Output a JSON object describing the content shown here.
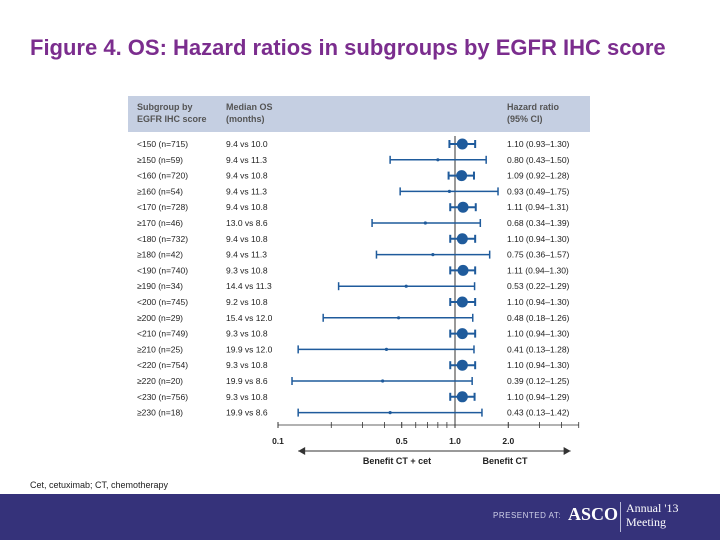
{
  "title": "Figure 4. OS: Hazard ratios in subgroups by EGFR IHC score",
  "footnote": "Cet, cetuximab; CT, chemotherapy",
  "footer": {
    "presented": "PRESENTED AT:",
    "logo": "ASCO",
    "annual": "Annual '13 Meeting"
  },
  "table_header": {
    "col1": [
      "Subgroup by",
      "EGFR IHC score"
    ],
    "col2": [
      "Median OS",
      "(months)"
    ],
    "col3": [
      "Hazard ratio",
      "(95% CI)"
    ]
  },
  "colors": {
    "header_bg": "#c5cfe2",
    "marker": "#1f5b9c",
    "title": "#7b2d8e",
    "footer": "#35327a"
  },
  "chart_data": {
    "type": "forest",
    "x_scale": "log",
    "reference_line": 1.0,
    "x_ticks": [
      {
        "value": 0.1,
        "label": "0.1"
      },
      {
        "value": 0.5,
        "label": "0.5"
      },
      {
        "value": 1.0,
        "label": "1.0"
      },
      {
        "value": 2.0,
        "label": "2.0"
      }
    ],
    "x_minor_ticks": [
      0.2,
      0.3,
      0.4,
      0.6,
      0.7,
      0.8,
      0.9,
      3,
      4,
      5
    ],
    "xlabel_left": "Benefit CT + cet",
    "xlabel_right": "Benefit CT",
    "rows": [
      {
        "subgroup": "<150 (n=715)",
        "median_os": "9.4 vs 10.0",
        "hr": 1.1,
        "lo": 0.93,
        "hi": 1.3,
        "ci_text": "1.10 (0.93–1.30)",
        "large": true
      },
      {
        "subgroup": "≥150 (n=59)",
        "median_os": "9.4 vs 11.3",
        "hr": 0.8,
        "lo": 0.43,
        "hi": 1.5,
        "ci_text": "0.80 (0.43–1.50)",
        "large": false
      },
      {
        "subgroup": "<160 (n=720)",
        "median_os": "9.4 vs 10.8",
        "hr": 1.09,
        "lo": 0.92,
        "hi": 1.28,
        "ci_text": "1.09 (0.92–1.28)",
        "large": true
      },
      {
        "subgroup": "≥160 (n=54)",
        "median_os": "9.4 vs 11.3",
        "hr": 0.93,
        "lo": 0.49,
        "hi": 1.75,
        "ci_text": "0.93 (0.49–1.75)",
        "large": false
      },
      {
        "subgroup": "<170 (n=728)",
        "median_os": "9.4 vs 10.8",
        "hr": 1.11,
        "lo": 0.94,
        "hi": 1.31,
        "ci_text": "1.11 (0.94–1.31)",
        "large": true
      },
      {
        "subgroup": "≥170 (n=46)",
        "median_os": "13.0 vs 8.6",
        "hr": 0.68,
        "lo": 0.34,
        "hi": 1.39,
        "ci_text": "0.68 (0.34–1.39)",
        "large": false
      },
      {
        "subgroup": "<180 (n=732)",
        "median_os": "9.4 vs 10.8",
        "hr": 1.1,
        "lo": 0.94,
        "hi": 1.3,
        "ci_text": "1.10 (0.94–1.30)",
        "large": true
      },
      {
        "subgroup": "≥180 (n=42)",
        "median_os": "9.4 vs 11.3",
        "hr": 0.75,
        "lo": 0.36,
        "hi": 1.57,
        "ci_text": "0.75 (0.36–1.57)",
        "large": false
      },
      {
        "subgroup": "<190 (n=740)",
        "median_os": "9.3 vs 10.8",
        "hr": 1.11,
        "lo": 0.94,
        "hi": 1.3,
        "ci_text": "1.11 (0.94–1.30)",
        "large": true
      },
      {
        "subgroup": "≥190 (n=34)",
        "median_os": "14.4 vs 11.3",
        "hr": 0.53,
        "lo": 0.22,
        "hi": 1.29,
        "ci_text": "0.53 (0.22–1.29)",
        "large": false
      },
      {
        "subgroup": "<200 (n=745)",
        "median_os": "9.2 vs 10.8",
        "hr": 1.1,
        "lo": 0.94,
        "hi": 1.3,
        "ci_text": "1.10 (0.94–1.30)",
        "large": true
      },
      {
        "subgroup": "≥200 (n=29)",
        "median_os": "15.4 vs 12.0",
        "hr": 0.48,
        "lo": 0.18,
        "hi": 1.26,
        "ci_text": "0.48 (0.18–1.26)",
        "large": false
      },
      {
        "subgroup": "<210 (n=749)",
        "median_os": "9.3 vs 10.8",
        "hr": 1.1,
        "lo": 0.94,
        "hi": 1.3,
        "ci_text": "1.10 (0.94–1.30)",
        "large": true
      },
      {
        "subgroup": "≥210 (n=25)",
        "median_os": "19.9 vs 12.0",
        "hr": 0.41,
        "lo": 0.13,
        "hi": 1.28,
        "ci_text": "0.41 (0.13–1.28)",
        "large": false
      },
      {
        "subgroup": "<220 (n=754)",
        "median_os": "9.3 vs 10.8",
        "hr": 1.1,
        "lo": 0.94,
        "hi": 1.3,
        "ci_text": "1.10 (0.94–1.30)",
        "large": true
      },
      {
        "subgroup": "≥220 (n=20)",
        "median_os": "19.9 vs 8.6",
        "hr": 0.39,
        "lo": 0.12,
        "hi": 1.25,
        "ci_text": "0.39 (0.12–1.25)",
        "large": false
      },
      {
        "subgroup": "<230 (n=756)",
        "median_os": "9.3 vs 10.8",
        "hr": 1.1,
        "lo": 0.94,
        "hi": 1.29,
        "ci_text": "1.10 (0.94–1.29)",
        "large": true
      },
      {
        "subgroup": "≥230 (n=18)",
        "median_os": "19.9 vs 8.6",
        "hr": 0.43,
        "lo": 0.13,
        "hi": 1.42,
        "ci_text": "0.43 (0.13–1.42)",
        "large": false
      }
    ]
  }
}
